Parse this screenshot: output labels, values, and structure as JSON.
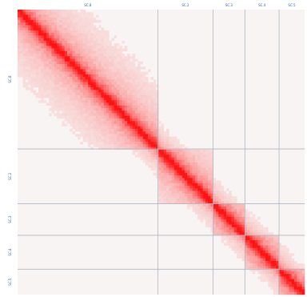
{
  "chart_data": {
    "type": "heatmap",
    "title": "",
    "xlabel": "",
    "ylabel": "",
    "matrix_kind": "contact-map",
    "scale": "log",
    "grid": true,
    "legend": "none",
    "colors": {
      "low": "#f7f4f3",
      "high": "#ff1212",
      "grid": "#aeb6c2",
      "label": "#2a62c9"
    },
    "axis_extent": [
      0,
      1
    ],
    "blocks": [
      {
        "label": "SC.8",
        "start": 0.0,
        "end": 0.489
      },
      {
        "label": "SC.2",
        "start": 0.489,
        "end": 0.681
      },
      {
        "label": "SC.3",
        "start": 0.681,
        "end": 0.792
      },
      {
        "label": "SC.4",
        "start": 0.792,
        "end": 0.911
      },
      {
        "label": "SC.5",
        "start": 0.911,
        "end": 1.0
      }
    ],
    "row_blocks": [
      {
        "label": "SC.8",
        "start": 0.0,
        "end": 0.489
      },
      {
        "label": "SC.2",
        "start": 0.489,
        "end": 0.681
      },
      {
        "label": "SC.3",
        "start": 0.681,
        "end": 0.792
      },
      {
        "label": "SC.4",
        "start": 0.792,
        "end": 0.911
      },
      {
        "label": "SC.5",
        "start": 0.911,
        "end": 1.0
      }
    ]
  }
}
